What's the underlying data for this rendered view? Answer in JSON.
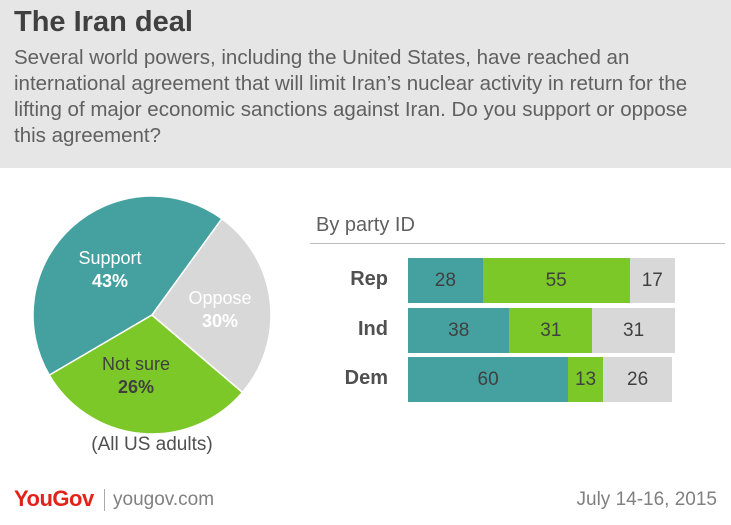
{
  "header": {
    "title": "The Iran deal",
    "question": "Several world powers, including the United States, have reached an international agreement that will limit Iran’s nuclear activity in return for the lifting of major economic sanctions against Iran. Do you support or oppose this agreement?"
  },
  "colors": {
    "support": "#45a0a0",
    "oppose": "#7dc829",
    "not_sure": "#d8d8d8"
  },
  "chart_data": [
    {
      "type": "pie",
      "caption": "(All US adults)",
      "slices": [
        {
          "name": "Support",
          "value": 43,
          "label": "43%"
        },
        {
          "name": "Oppose",
          "value": 30,
          "label": "30%"
        },
        {
          "name": "Not sure",
          "value": 26,
          "label": "26%"
        }
      ]
    },
    {
      "type": "bar",
      "orientation": "horizontal",
      "stacked": true,
      "title": "By party ID",
      "categories": [
        "Rep",
        "Ind",
        "Dem"
      ],
      "series": [
        {
          "values": [
            28,
            38,
            60
          ]
        },
        {
          "values": [
            55,
            31,
            13
          ]
        },
        {
          "values": [
            17,
            31,
            26
          ]
        }
      ]
    }
  ],
  "footer": {
    "brand": "YouGov",
    "url": "yougov.com",
    "date": "July 14-16, 2015"
  }
}
